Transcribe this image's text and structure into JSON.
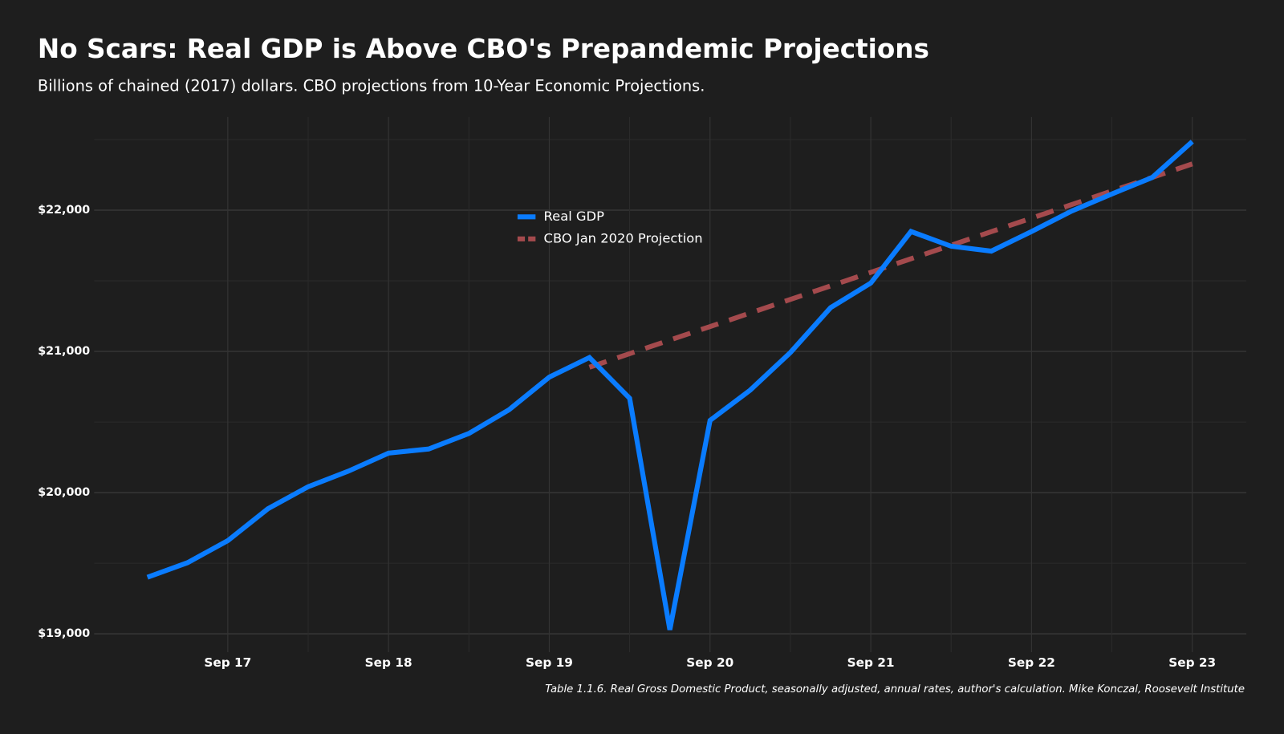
{
  "chart_data": {
    "type": "line",
    "title": "No Scars: Real GDP is Above CBO's Prepandemic Projections",
    "subtitle": "Billions of chained (2017) dollars. CBO projections from 10-Year Economic Projections.",
    "caption": "Table 1.1.6. Real Gross Domestic Product, seasonally adjusted, annual rates, author's calculation. Mike Konczal, Roosevelt Institute",
    "categories": [
      null,
      null,
      "Sep 17",
      null,
      null,
      null,
      "Sep 18",
      null,
      null,
      null,
      "Sep 19",
      null,
      null,
      null,
      "Sep 20",
      null,
      null,
      null,
      "Sep 21",
      null,
      null,
      null,
      "Sep 22",
      null,
      null,
      null,
      "Sep 23"
    ],
    "series": [
      {
        "name": "Real GDP",
        "color": "#0a7cff",
        "dashed": false,
        "values": [
          19400,
          19504,
          19660,
          19886,
          20042,
          20152,
          20280,
          20309,
          20419,
          20587,
          20818,
          20957,
          20668,
          19029,
          20511,
          20726,
          20992,
          21310,
          21484,
          21849,
          21745,
          21710,
          21849,
          21994,
          22115,
          22231,
          22486
        ]
      },
      {
        "name": "CBO Jan 2020 Projection",
        "color": "#a44a4d",
        "dashed": true,
        "values": [
          null,
          null,
          null,
          null,
          null,
          null,
          null,
          null,
          null,
          null,
          null,
          20888,
          20984,
          21080,
          21176,
          21272,
          21368,
          21464,
          21560,
          21656,
          21752,
          21848,
          21944,
          22040,
          22136,
          22232,
          22328
        ]
      }
    ],
    "ylim": [
      18870,
      22660
    ],
    "yticks": [
      {
        "value": 19000,
        "label": "$19,000"
      },
      {
        "value": 20000,
        "label": "$20,000"
      },
      {
        "value": 21000,
        "label": "$21,000"
      },
      {
        "value": 22000,
        "label": "$22,000"
      }
    ],
    "yminor": [
      19500,
      20500,
      21500,
      22500
    ],
    "grid": true,
    "legend": "top"
  }
}
